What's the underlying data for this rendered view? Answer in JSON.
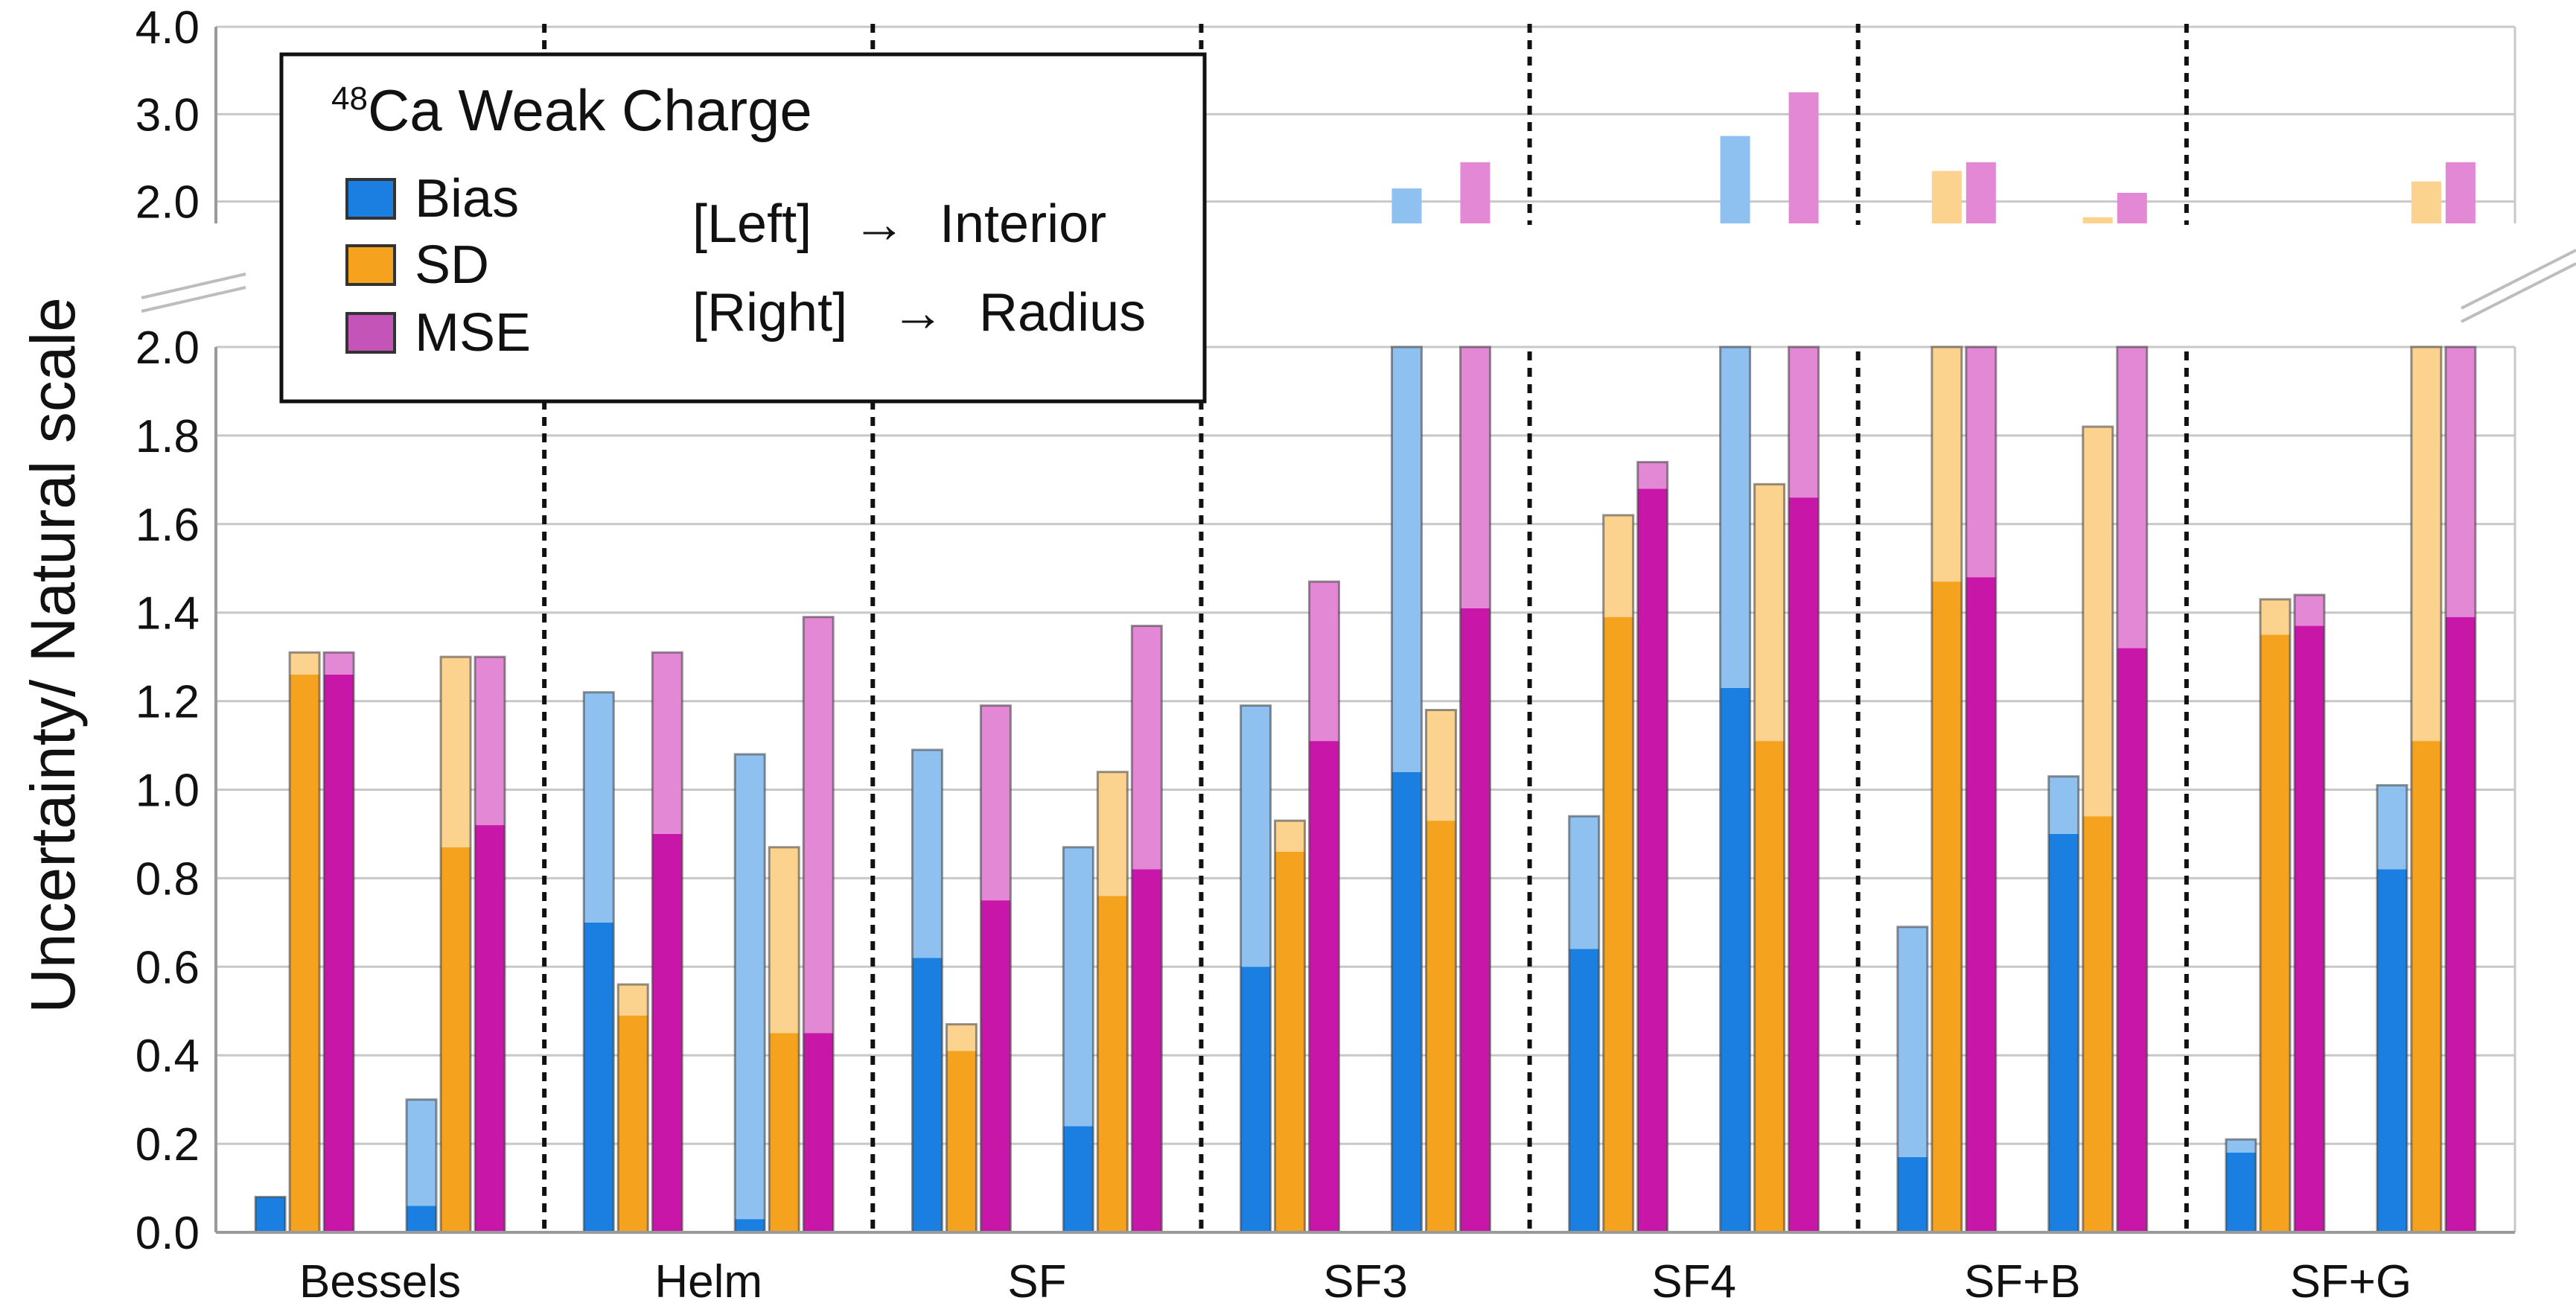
{
  "chart_data": {
    "type": "bar",
    "title_sup": "48",
    "title_main": "Ca Weak Charge",
    "ylabel": "Uncertainty/ Natural scale",
    "xlabel": "",
    "categories": [
      "Bessels",
      "Helm",
      "SF",
      "SF3",
      "SF4",
      "SF+B",
      "SF+G"
    ],
    "lower_axis": {
      "ylim": [
        0.0,
        2.0
      ],
      "ticks": [
        "0.0",
        "0.2",
        "0.4",
        "0.6",
        "0.8",
        "1.0",
        "1.2",
        "1.4",
        "1.6",
        "1.8",
        "2.0"
      ]
    },
    "upper_axis": {
      "ylim": [
        1.75,
        4.0
      ],
      "ticks": [
        "2.0",
        "3.0",
        "4.0"
      ]
    },
    "legend": {
      "items": [
        {
          "name": "Bias",
          "color": "#1a7fe0"
        },
        {
          "name": "SD",
          "color": "#f5a31e"
        },
        {
          "name": "MSE",
          "color": "#c817a8"
        }
      ],
      "notes": [
        {
          "bracket": "[Left]",
          "arrow": "→",
          "target": "Interior"
        },
        {
          "bracket": "[Right]",
          "arrow": "→",
          "target": "Radius"
        }
      ]
    },
    "encoding": "Each category has a Left (Interior) group and a Right (Radius) group. Dark bar = solid value; pale bar = extended value.",
    "groups": [
      {
        "category": "Bessels",
        "side": "Left (Interior)",
        "bias": [
          0.08,
          0.08
        ],
        "sd": [
          1.26,
          1.31
        ],
        "mse": [
          1.26,
          1.31
        ]
      },
      {
        "category": "Bessels",
        "side": "Right (Radius)",
        "bias": [
          0.06,
          0.3
        ],
        "sd": [
          0.87,
          1.3
        ],
        "mse": [
          0.92,
          1.3
        ]
      },
      {
        "category": "Helm",
        "side": "Left (Interior)",
        "bias": [
          0.7,
          1.22
        ],
        "sd": [
          0.49,
          0.56
        ],
        "mse": [
          0.9,
          1.31
        ]
      },
      {
        "category": "Helm",
        "side": "Right (Radius)",
        "bias": [
          0.03,
          1.08
        ],
        "sd": [
          0.45,
          0.87
        ],
        "mse": [
          0.45,
          1.39
        ]
      },
      {
        "category": "SF",
        "side": "Left (Interior)",
        "bias": [
          0.62,
          1.09
        ],
        "sd": [
          0.41,
          0.47
        ],
        "mse": [
          0.75,
          1.19
        ]
      },
      {
        "category": "SF",
        "side": "Right (Radius)",
        "bias": [
          0.24,
          0.87
        ],
        "sd": [
          0.76,
          1.04
        ],
        "mse": [
          0.82,
          1.37
        ]
      },
      {
        "category": "SF3",
        "side": "Left (Interior)",
        "bias": [
          0.6,
          1.19
        ],
        "sd": [
          0.86,
          0.93
        ],
        "mse": [
          1.11,
          1.47
        ]
      },
      {
        "category": "SF3",
        "side": "Right (Radius)",
        "bias": [
          1.04,
          2.15
        ],
        "sd": [
          0.93,
          1.18
        ],
        "mse": [
          1.41,
          2.45
        ]
      },
      {
        "category": "SF4",
        "side": "Left (Interior)",
        "bias": [
          0.64,
          0.94
        ],
        "sd": [
          1.39,
          1.62
        ],
        "mse": [
          1.68,
          1.74
        ]
      },
      {
        "category": "SF4",
        "side": "Right (Radius)",
        "bias": [
          1.23,
          2.75
        ],
        "sd": [
          1.11,
          1.69
        ],
        "mse": [
          1.66,
          3.25
        ]
      },
      {
        "category": "SF+B",
        "side": "Left (Interior)",
        "bias": [
          0.17,
          0.69
        ],
        "sd": [
          1.47,
          2.35
        ],
        "mse": [
          1.48,
          2.45
        ]
      },
      {
        "category": "SF+B",
        "side": "Right (Radius)",
        "bias": [
          0.9,
          1.03
        ],
        "sd": [
          0.94,
          1.82
        ],
        "mse": [
          1.32,
          2.1
        ]
      },
      {
        "category": "SF+G",
        "side": "Left (Interior)",
        "bias": [
          0.18,
          0.21
        ],
        "sd": [
          1.35,
          1.43
        ],
        "mse": [
          1.37,
          1.44
        ]
      },
      {
        "category": "SF+G",
        "side": "Right (Radius)",
        "bias": [
          0.82,
          1.01
        ],
        "sd": [
          1.11,
          2.23
        ],
        "mse": [
          1.39,
          2.45
        ]
      }
    ],
    "pale_colors": {
      "bias": "#8ec1f0",
      "sd": "#fbd28e",
      "mse": "#e388d4"
    },
    "grid": true
  }
}
